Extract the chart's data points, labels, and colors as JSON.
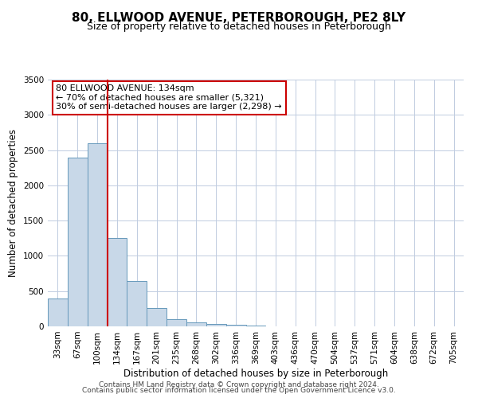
{
  "title": "80, ELLWOOD AVENUE, PETERBOROUGH, PE2 8LY",
  "subtitle": "Size of property relative to detached houses in Peterborough",
  "xlabel": "Distribution of detached houses by size in Peterborough",
  "ylabel": "Number of detached properties",
  "bar_labels": [
    "33sqm",
    "67sqm",
    "100sqm",
    "134sqm",
    "167sqm",
    "201sqm",
    "235sqm",
    "268sqm",
    "302sqm",
    "336sqm",
    "369sqm",
    "403sqm",
    "436sqm",
    "470sqm",
    "504sqm",
    "537sqm",
    "571sqm",
    "604sqm",
    "638sqm",
    "672sqm",
    "705sqm"
  ],
  "bar_values": [
    390,
    2390,
    2600,
    1250,
    640,
    260,
    100,
    55,
    30,
    20,
    10,
    0,
    0,
    0,
    0,
    0,
    0,
    0,
    0,
    0,
    0
  ],
  "bar_color": "#c8d8e8",
  "bar_edge_color": "#6699bb",
  "vline_x_index": 3,
  "vline_color": "#cc0000",
  "annotation_title": "80 ELLWOOD AVENUE: 134sqm",
  "annotation_line1": "← 70% of detached houses are smaller (5,321)",
  "annotation_line2": "30% of semi-detached houses are larger (2,298) →",
  "annotation_box_color": "#ffffff",
  "annotation_border_color": "#cc0000",
  "ylim": [
    0,
    3500
  ],
  "yticks": [
    0,
    500,
    1000,
    1500,
    2000,
    2500,
    3000,
    3500
  ],
  "footnote1": "Contains HM Land Registry data © Crown copyright and database right 2024.",
  "footnote2": "Contains public sector information licensed under the Open Government Licence v3.0.",
  "bg_color": "#ffffff",
  "grid_color": "#c0cce0",
  "title_fontsize": 11,
  "subtitle_fontsize": 9,
  "axis_label_fontsize": 8.5,
  "tick_fontsize": 7.5,
  "annotation_fontsize": 8,
  "footnote_fontsize": 6.5
}
